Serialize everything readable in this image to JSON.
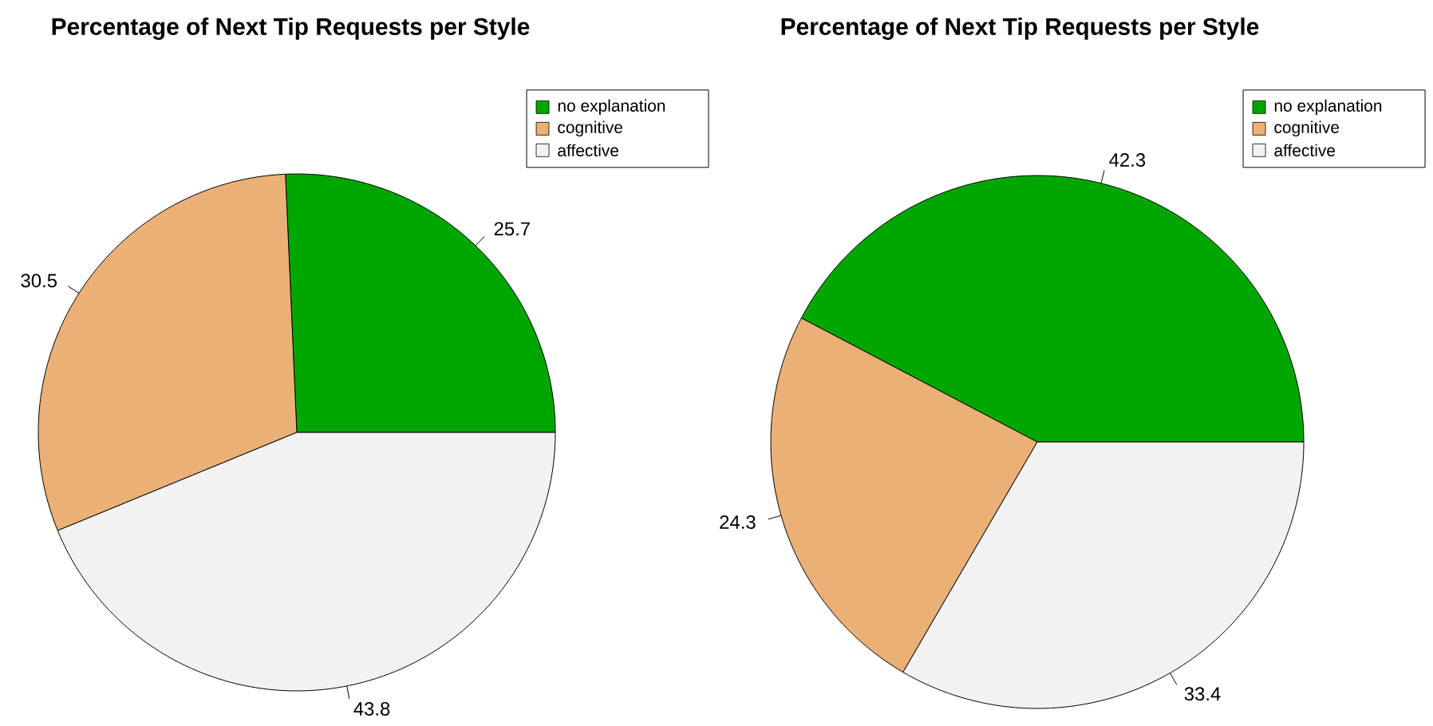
{
  "chart_data": [
    {
      "type": "pie",
      "title": "Percentage of Next Tip Requests per Style",
      "categories": [
        "no explanation",
        "cognitive",
        "affective"
      ],
      "values": [
        25.7,
        30.5,
        43.8
      ],
      "colors": [
        "#00a600",
        "#ebb076",
        "#f2f2f2"
      ],
      "legend": "top right",
      "data_labels": true
    },
    {
      "type": "pie",
      "title": "Percentage of Next Tip Requests per Style",
      "categories": [
        "no explanation",
        "cognitive",
        "affective"
      ],
      "values": [
        42.3,
        24.3,
        33.4
      ],
      "colors": [
        "#00a600",
        "#ebb076",
        "#f2f2f2"
      ],
      "legend": "top right",
      "data_labels": true
    }
  ]
}
